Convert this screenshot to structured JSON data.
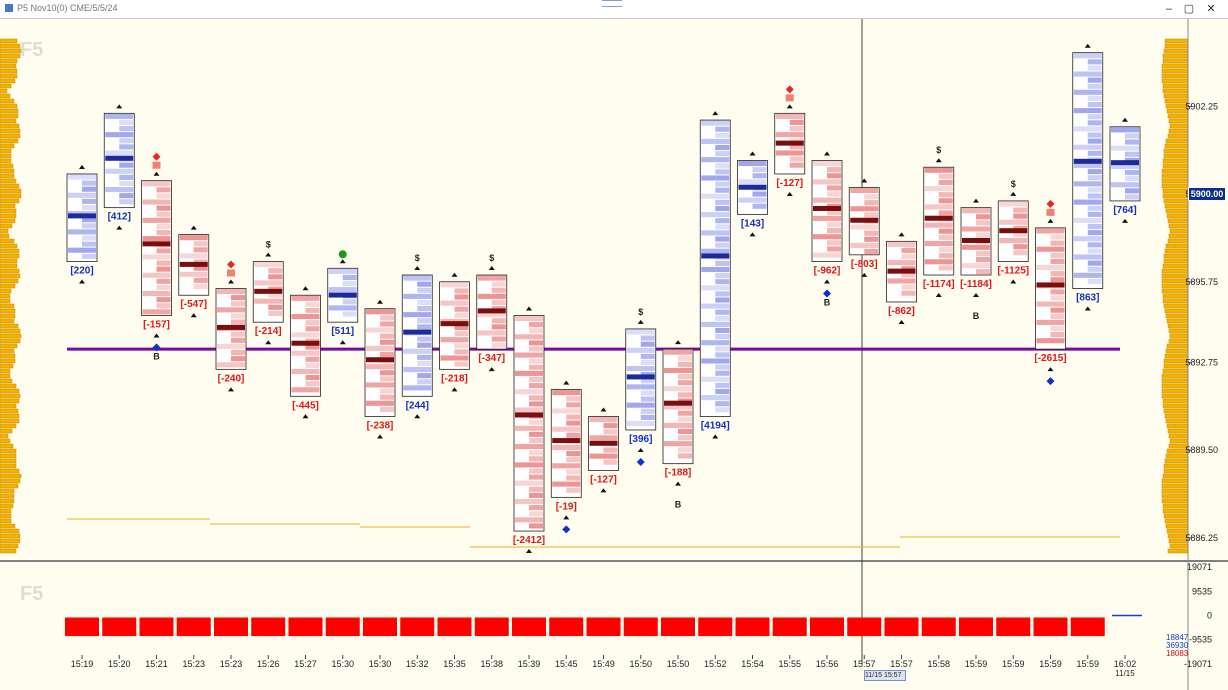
{
  "window": {
    "title": "P5 Nov10(0) CME/5/5/24",
    "min_glyph": "–",
    "max_glyph": "▢",
    "close_glyph": "✕"
  },
  "chart_labels": {
    "top_label": "F5",
    "bottom_label": "F5",
    "current_price": "5900.00",
    "date_box": "11/15 15:57"
  },
  "price_axis": [
    {
      "label": "5902.25",
      "price": 5902.25
    },
    {
      "label": "5899.00",
      "price": 5899.0
    },
    {
      "label": "5895.75",
      "price": 5895.75
    },
    {
      "label": "5892.75",
      "price": 5892.75
    },
    {
      "label": "5889.50",
      "price": 5889.5
    },
    {
      "label": "5886.25",
      "price": 5886.25
    }
  ],
  "volume_axis": [
    "19071",
    "9535",
    "0",
    "-9535",
    "-19071"
  ],
  "volume_readout": [
    {
      "value": "18847",
      "color": "#1a40c8"
    },
    {
      "value": "36930",
      "color": "#1a40c8"
    },
    {
      "value": "18083",
      "color": "#d01010"
    }
  ],
  "time_axis": [
    {
      "label": "15:19"
    },
    {
      "label": "15:20"
    },
    {
      "label": "15:21"
    },
    {
      "label": "15:23"
    },
    {
      "label": "15:23"
    },
    {
      "label": "15:26"
    },
    {
      "label": "15:27"
    },
    {
      "label": "15:30"
    },
    {
      "label": "15:30"
    },
    {
      "label": "15:32"
    },
    {
      "label": "15:35"
    },
    {
      "label": "15:38"
    },
    {
      "label": "15:39"
    },
    {
      "label": "15:45"
    },
    {
      "label": "15:49"
    },
    {
      "label": "15:50"
    },
    {
      "label": "15:50"
    },
    {
      "label": "15:52"
    },
    {
      "label": "15:54"
    },
    {
      "label": "15:55"
    },
    {
      "label": "15:56"
    },
    {
      "label": "15:57"
    },
    {
      "label": "15:57"
    },
    {
      "label": "15:58"
    },
    {
      "label": "15:59"
    },
    {
      "label": "15:59"
    },
    {
      "label": "15:59"
    },
    {
      "label": "15:59"
    },
    {
      "label": "16:02",
      "sub": "11/15"
    }
  ],
  "deltas": [
    {
      "text": "[220]",
      "color": "#1530c0"
    },
    {
      "text": "[412]",
      "color": "#1530c0"
    },
    {
      "text": "[-157]",
      "color": "#e01818"
    },
    {
      "text": "[-547]",
      "color": "#e01818"
    },
    {
      "text": "[-240]",
      "color": "#e01818"
    },
    {
      "text": "[-214]",
      "color": "#e01818"
    },
    {
      "text": "[-445]",
      "color": "#e01818"
    },
    {
      "text": "[511]",
      "color": "#1530c0"
    },
    {
      "text": "[-238]",
      "color": "#e01818"
    },
    {
      "text": "[244]",
      "color": "#1530c0"
    },
    {
      "text": "[-218]",
      "color": "#e01818"
    },
    {
      "text": "[-347]",
      "color": "#e01818"
    },
    {
      "text": "[-2412]",
      "color": "#e01818"
    },
    {
      "text": "[-19]",
      "color": "#e01818"
    },
    {
      "text": "[-127]",
      "color": "#e01818"
    },
    {
      "text": "[396]",
      "color": "#1530c0"
    },
    {
      "text": "[-188]",
      "color": "#e01818"
    },
    {
      "text": "[4194]",
      "color": "#1530c0"
    },
    {
      "text": "[143]",
      "color": "#1530c0"
    },
    {
      "text": "[-127]",
      "color": "#e01818"
    },
    {
      "text": "[-962]",
      "color": "#e01818"
    },
    {
      "text": "[-803]",
      "color": "#e01818"
    },
    {
      "text": "[-862]",
      "color": "#e01818"
    },
    {
      "text": "[-1174]",
      "color": "#e01818"
    },
    {
      "text": "[-1184]",
      "color": "#e01818"
    },
    {
      "text": "[-1125]",
      "color": "#e01818"
    },
    {
      "text": "[-2615]",
      "color": "#e01818"
    },
    {
      "text": "[863]",
      "color": "#1530c0"
    },
    {
      "text": "[764]",
      "color": "#1530c0"
    }
  ],
  "markers": {
    "dollar": "$",
    "b_label": "B"
  },
  "colors": {
    "chart_bg": "#fffcf0",
    "poc_line": "#7a0a99",
    "volume_bar": "#ff0000",
    "profile_bar": "#f3b200",
    "price_tag": "#0b2f8f",
    "buy_cell": "#c4c8f5",
    "sell_cell": "#f5c6c6"
  },
  "chart_data": {
    "type": "footprint",
    "y_axis": "price",
    "ylim": [
      5885.5,
      5905.5
    ],
    "poc_price": 5893.25,
    "last_price": 5900.0,
    "bars": [
      {
        "time": "15:19",
        "high": 5899.75,
        "low": 5896.5,
        "delta": 220
      },
      {
        "time": "15:20",
        "high": 5902.0,
        "low": 5898.5,
        "delta": 412
      },
      {
        "time": "15:21",
        "high": 5899.5,
        "low": 5894.5,
        "delta": -157
      },
      {
        "time": "15:23",
        "high": 5897.5,
        "low": 5895.25,
        "delta": -547
      },
      {
        "time": "15:23",
        "high": 5895.5,
        "low": 5892.5,
        "delta": -240
      },
      {
        "time": "15:26",
        "high": 5896.5,
        "low": 5894.25,
        "delta": -214
      },
      {
        "time": "15:27",
        "high": 5895.25,
        "low": 5891.5,
        "delta": -445
      },
      {
        "time": "15:30",
        "high": 5896.25,
        "low": 5894.25,
        "delta": 511
      },
      {
        "time": "15:30",
        "high": 5894.75,
        "low": 5890.75,
        "delta": -238
      },
      {
        "time": "15:32",
        "high": 5896.0,
        "low": 5891.5,
        "delta": 244
      },
      {
        "time": "15:35",
        "high": 5895.75,
        "low": 5892.5,
        "delta": -218
      },
      {
        "time": "15:38",
        "high": 5896.0,
        "low": 5893.25,
        "delta": -347
      },
      {
        "time": "15:39",
        "high": 5894.5,
        "low": 5886.5,
        "delta": -2412
      },
      {
        "time": "15:45",
        "high": 5891.75,
        "low": 5887.75,
        "delta": -19
      },
      {
        "time": "15:49",
        "high": 5890.75,
        "low": 5888.75,
        "delta": -127
      },
      {
        "time": "15:50",
        "high": 5894.0,
        "low": 5890.25,
        "delta": 396
      },
      {
        "time": "15:50",
        "high": 5893.25,
        "low": 5889.0,
        "delta": -188
      },
      {
        "time": "15:52",
        "high": 5901.75,
        "low": 5890.75,
        "delta": 4194
      },
      {
        "time": "15:54",
        "high": 5900.25,
        "low": 5898.25,
        "delta": 143
      },
      {
        "time": "15:55",
        "high": 5902.0,
        "low": 5899.75,
        "delta": -127
      },
      {
        "time": "15:56",
        "high": 5900.25,
        "low": 5896.5,
        "delta": -962
      },
      {
        "time": "15:57",
        "high": 5899.25,
        "low": 5896.75,
        "delta": -803
      },
      {
        "time": "15:57",
        "high": 5897.25,
        "low": 5895.0,
        "delta": -862
      },
      {
        "time": "15:58",
        "high": 5900.0,
        "low": 5896.0,
        "delta": -1174
      },
      {
        "time": "15:59",
        "high": 5898.5,
        "low": 5896.0,
        "delta": -1184
      },
      {
        "time": "15:59",
        "high": 5898.75,
        "low": 5896.5,
        "delta": -1125
      },
      {
        "time": "15:59",
        "high": 5897.75,
        "low": 5893.25,
        "delta": -2615
      },
      {
        "time": "15:59",
        "high": 5904.25,
        "low": 5895.5,
        "delta": 863
      },
      {
        "time": "16:02",
        "high": 5901.5,
        "low": 5898.75,
        "delta": 764
      }
    ],
    "volume": [
      {
        "time": "15:19",
        "value": -9535
      },
      {
        "time": "15:20",
        "value": -9535
      },
      {
        "time": "15:21",
        "value": -9535
      },
      {
        "time": "15:23",
        "value": -9535
      },
      {
        "time": "15:23",
        "value": -9535
      },
      {
        "time": "15:26",
        "value": -9535
      },
      {
        "time": "15:27",
        "value": -9535
      },
      {
        "time": "15:30",
        "value": -9535
      },
      {
        "time": "15:30",
        "value": -9535
      },
      {
        "time": "15:32",
        "value": -9535
      },
      {
        "time": "15:35",
        "value": -9535
      },
      {
        "time": "15:38",
        "value": -9535
      },
      {
        "time": "15:39",
        "value": -9535
      },
      {
        "time": "15:45",
        "value": -9535
      },
      {
        "time": "15:49",
        "value": -9535
      },
      {
        "time": "15:50",
        "value": -9535
      },
      {
        "time": "15:50",
        "value": -9535
      },
      {
        "time": "15:52",
        "value": -9535
      },
      {
        "time": "15:54",
        "value": -9535
      },
      {
        "time": "15:55",
        "value": -9535
      },
      {
        "time": "15:56",
        "value": -9535
      },
      {
        "time": "15:57",
        "value": -9535
      },
      {
        "time": "15:57",
        "value": -9535
      },
      {
        "time": "15:58",
        "value": -9535
      },
      {
        "time": "15:59",
        "value": -9535
      },
      {
        "time": "15:59",
        "value": -9535
      },
      {
        "time": "15:59",
        "value": -9535
      },
      {
        "time": "15:59",
        "value": -9535
      },
      {
        "time": "16:02",
        "value": 0
      }
    ]
  }
}
